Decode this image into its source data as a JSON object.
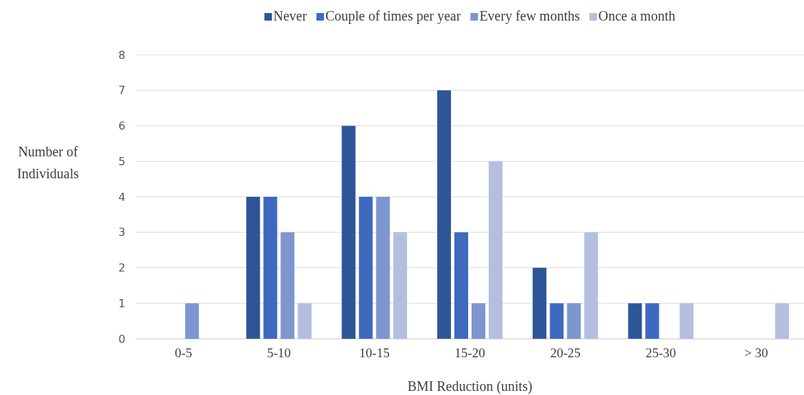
{
  "chart_data": {
    "type": "bar",
    "xlabel": "BMI Reduction (units)",
    "ylabel": "Number of Individuals",
    "categories": [
      "0-5",
      "5-10",
      "10-15",
      "15-20",
      "20-25",
      "25-30",
      "> 30"
    ],
    "series": [
      {
        "name": "Never",
        "color": "#2e5597",
        "values": [
          0,
          4,
          6,
          7,
          2,
          1,
          0
        ]
      },
      {
        "name": "Couple of times per year",
        "color": "#3d69bf",
        "values": [
          0,
          4,
          4,
          3,
          1,
          1,
          0
        ]
      },
      {
        "name": "Every few months",
        "color": "#7f95d0",
        "values": [
          1,
          3,
          4,
          1,
          1,
          0,
          0
        ]
      },
      {
        "name": "Once a month",
        "color": "#b4bfe0",
        "values": [
          0,
          1,
          3,
          5,
          3,
          1,
          1
        ]
      }
    ],
    "ylim": [
      0,
      8
    ],
    "yticks": [
      0,
      1,
      2,
      3,
      4,
      5,
      6,
      7,
      8
    ],
    "grid": "y",
    "legend": "top"
  }
}
